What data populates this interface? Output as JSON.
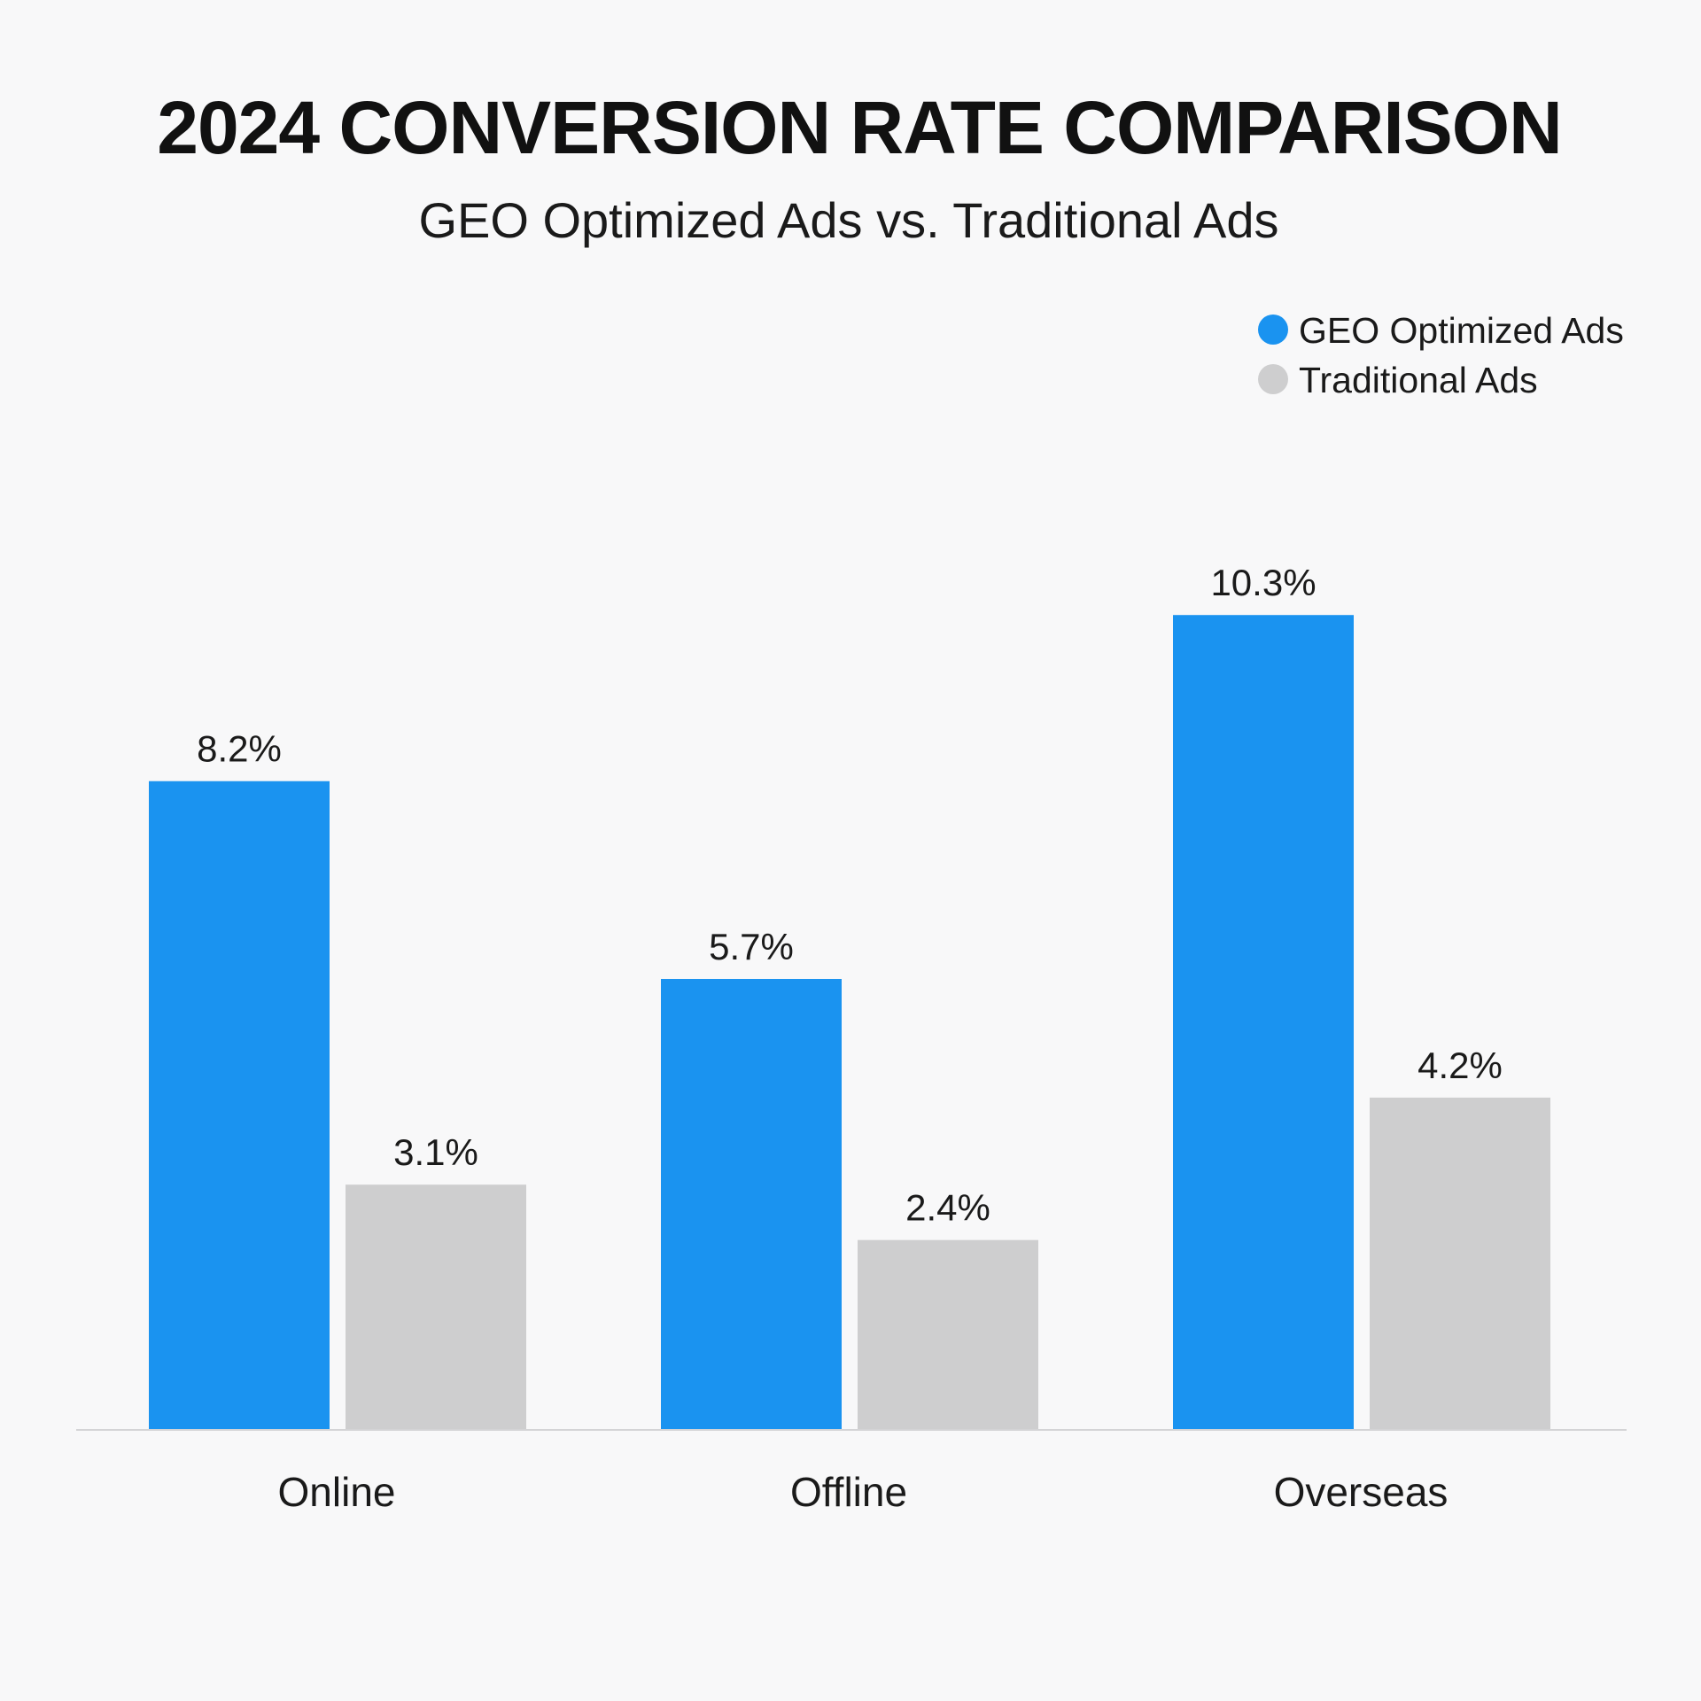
{
  "chart_data": {
    "type": "bar",
    "title": "2024 CONVERSION RATE COMPARISON",
    "subtitle": "GEO Optimized Ads vs. Traditional Ads",
    "categories": [
      "Online",
      "Offline",
      "Overseas"
    ],
    "series": [
      {
        "name": "GEO Optimized Ads",
        "color": "#1a93f0",
        "values": [
          8.2,
          5.7,
          10.3
        ],
        "labels": [
          "8.2%",
          "5.7%",
          "10.3%"
        ]
      },
      {
        "name": "Traditional Ads",
        "color": "#cececf",
        "values": [
          3.1,
          2.4,
          4.2
        ],
        "labels": [
          "3.1%",
          "2.4%",
          "4.2%"
        ]
      }
    ],
    "ylim": [
      0,
      12
    ],
    "grid": false,
    "legend_position": "top-right"
  }
}
